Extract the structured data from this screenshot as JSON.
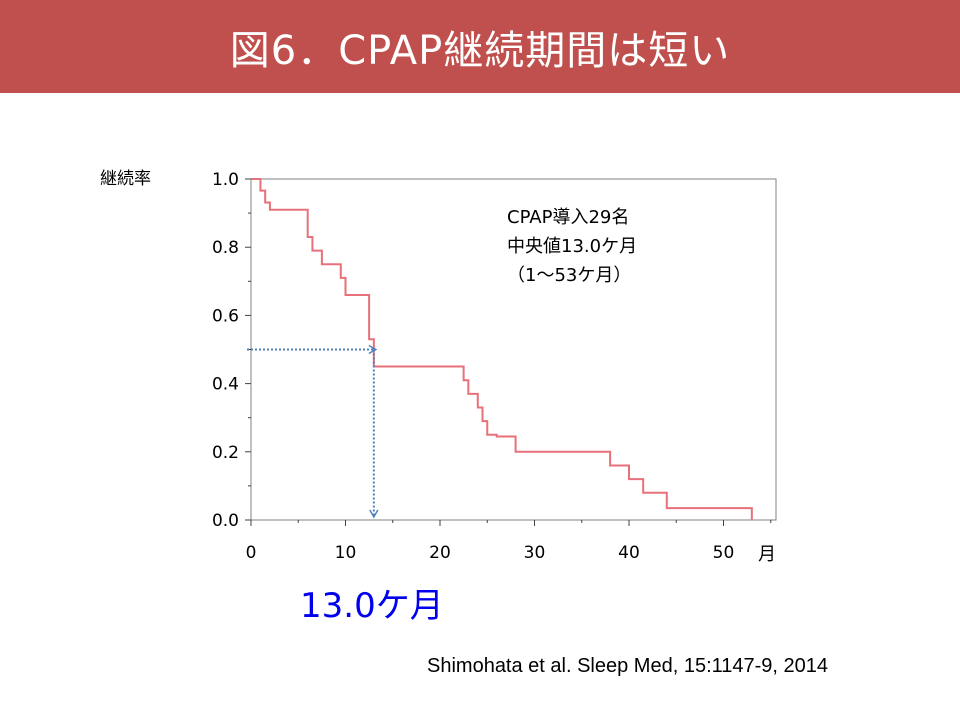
{
  "header": {
    "title": "図6．CPAP継続期間は短い",
    "color": "#c0504d"
  },
  "annotation": {
    "line1": "CPAP導入29名",
    "line2": "中央値13.0ケ月",
    "line3": "（1〜53ケ月）"
  },
  "median_callout": "13.0ケ月",
  "citation": "Shimohata et al. Sleep Med, 15:1147-9, 2014",
  "chart_data": {
    "type": "line",
    "step": true,
    "ylabel": "継続率",
    "xlabel": "月",
    "xlim": [
      0,
      55
    ],
    "ylim": [
      0,
      1.0
    ],
    "x_ticks": [
      0,
      10,
      20,
      30,
      40,
      50
    ],
    "x_tick_labels": [
      "0",
      "10",
      "20",
      "30",
      "40",
      "50"
    ],
    "y_ticks": [
      0.0,
      0.2,
      0.4,
      0.6,
      0.8,
      1.0
    ],
    "y_tick_labels": [
      "0.0",
      "0.2",
      "0.4",
      "0.6",
      "0.8",
      "1.0"
    ],
    "series": [
      {
        "color": "#e8707a",
        "x": [
          0,
          1,
          1.5,
          2,
          6,
          6.5,
          7.5,
          9.5,
          10,
          12.5,
          13,
          22.5,
          23,
          24,
          24.5,
          25,
          26,
          28,
          38,
          40,
          41.5,
          44,
          53
        ],
        "y": [
          1.0,
          0.966,
          0.931,
          0.91,
          0.83,
          0.79,
          0.75,
          0.71,
          0.66,
          0.53,
          0.45,
          0.41,
          0.37,
          0.33,
          0.29,
          0.25,
          0.245,
          0.2,
          0.16,
          0.12,
          0.08,
          0.035,
          0.0
        ]
      }
    ],
    "median_line": {
      "color": "#4f81bd",
      "x": 13.0,
      "y": 0.5
    },
    "grid": false
  }
}
